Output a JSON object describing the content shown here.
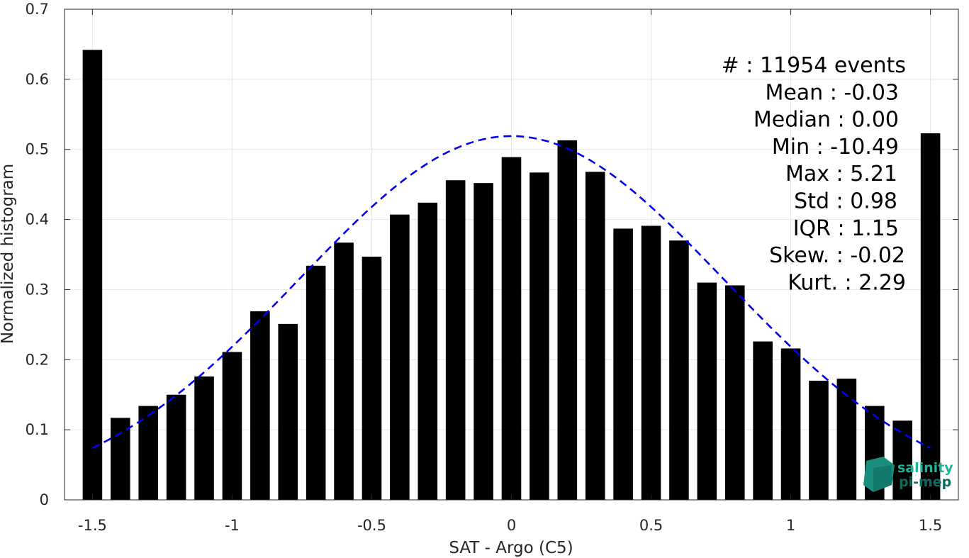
{
  "chart_data": {
    "type": "bar",
    "xlabel": "SAT - Argo (C5)",
    "ylabel": "Normalized histogram",
    "xlim": [
      -1.6,
      1.6
    ],
    "ylim": [
      0,
      0.7
    ],
    "x_ticks": [
      -1.5,
      -1,
      -0.5,
      0,
      0.5,
      1,
      1.5
    ],
    "x_tick_labels": [
      "-1.5",
      "-1",
      "-0.5",
      "0",
      "0.5",
      "1",
      "1.5"
    ],
    "y_ticks": [
      0,
      0.1,
      0.2,
      0.3,
      0.4,
      0.5,
      0.6,
      0.7
    ],
    "y_tick_labels": [
      "0",
      "0.1",
      "0.2",
      "0.3",
      "0.4",
      "0.5",
      "0.6",
      "0.7"
    ],
    "grid": true,
    "bar_color": "#000000",
    "bar_width": 0.07,
    "x": [
      -1.5,
      -1.4,
      -1.3,
      -1.2,
      -1.1,
      -1.0,
      -0.9,
      -0.8,
      -0.7,
      -0.6,
      -0.5,
      -0.4,
      -0.3,
      -0.2,
      -0.1,
      0.0,
      0.1,
      0.2,
      0.3,
      0.4,
      0.5,
      0.6,
      0.7,
      0.8,
      0.9,
      1.0,
      1.1,
      1.2,
      1.3,
      1.4,
      1.5
    ],
    "values": [
      0.642,
      0.117,
      0.134,
      0.15,
      0.176,
      0.211,
      0.269,
      0.251,
      0.334,
      0.367,
      0.347,
      0.407,
      0.424,
      0.456,
      0.452,
      0.489,
      0.467,
      0.513,
      0.468,
      0.387,
      0.391,
      0.37,
      0.31,
      0.306,
      0.226,
      0.216,
      0.17,
      0.173,
      0.134,
      0.113,
      0.523
    ],
    "fit_curve": {
      "type": "gaussian",
      "style": "dashed",
      "color": "#0000ee",
      "mean": 0.0,
      "std": 0.76,
      "peak": 0.519,
      "x_range": [
        -1.5,
        1.5
      ]
    },
    "stats": [
      "#  : 11954 events",
      "Mean : -0.03",
      "Median : 0.00",
      "Min : -10.49",
      "Max : 5.21",
      "Std : 0.98",
      "IQR : 1.15",
      "Skew. : -0.02",
      "Kurt. : 2.29"
    ]
  },
  "logo": {
    "line1": "salinity",
    "line2": "pi-mep",
    "color1": "#1fb39a",
    "color2": "#0d6b5e"
  }
}
